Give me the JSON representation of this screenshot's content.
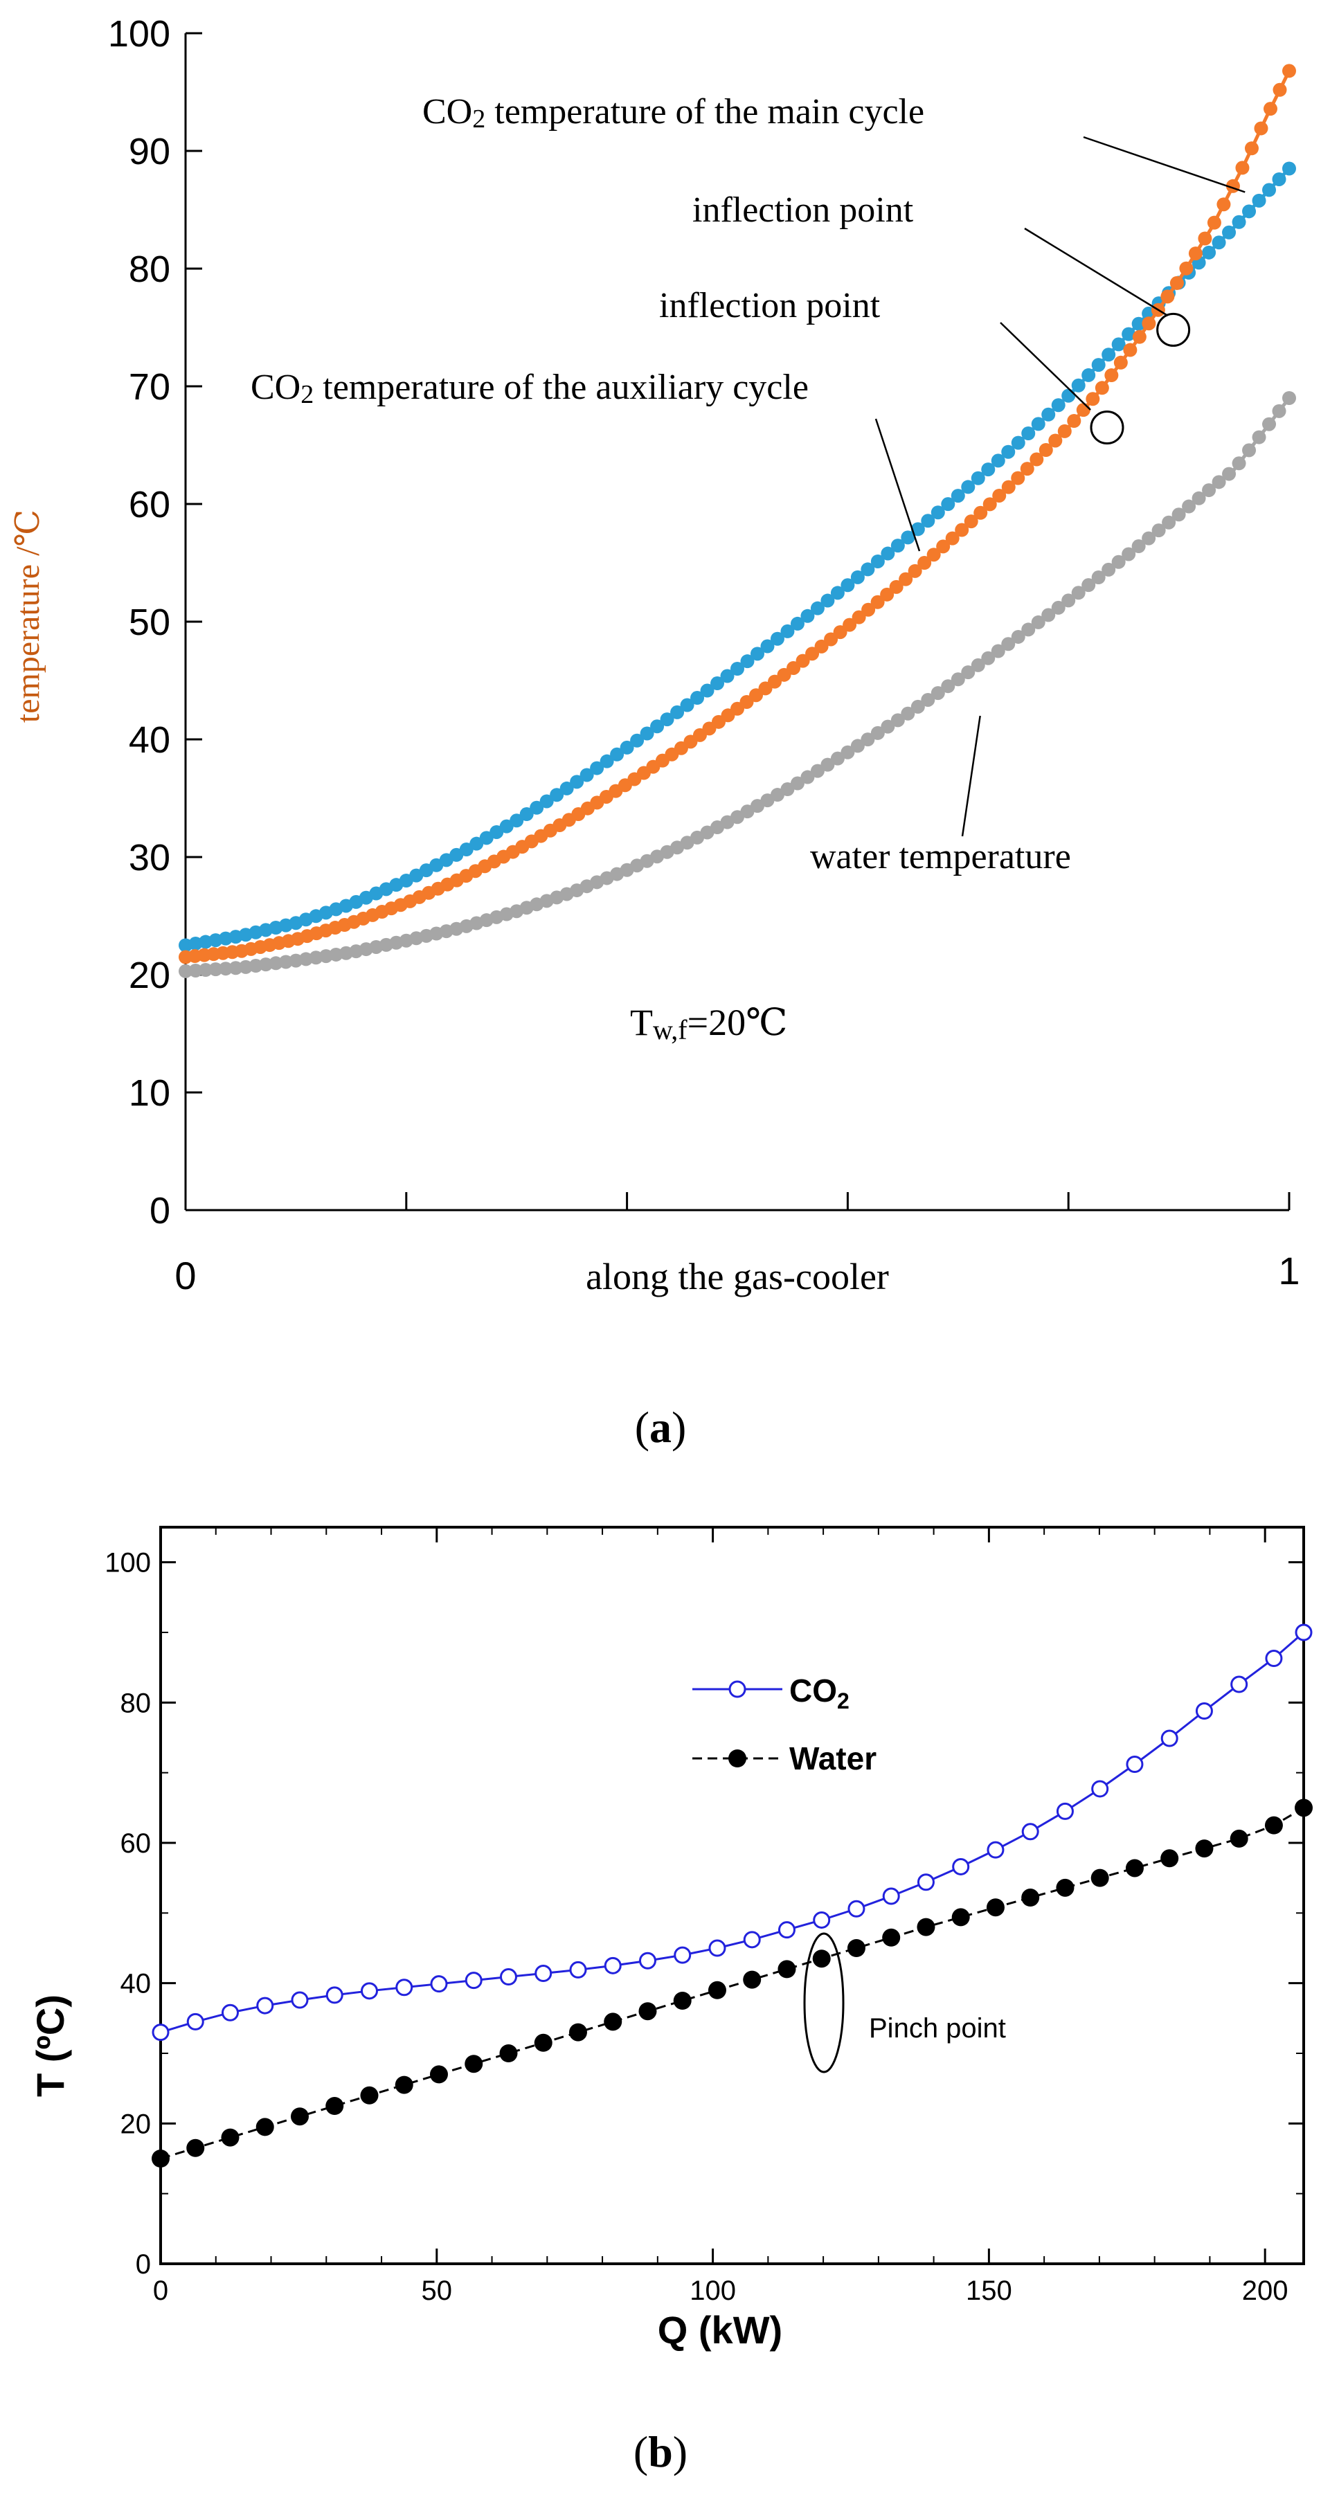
{
  "chart_data": [
    {
      "id": "a",
      "type": "line",
      "panel_label": "a",
      "title": "",
      "xlabel": "along the gas-cooler",
      "ylabel": "temperature /℃",
      "xlim": [
        0,
        1
      ],
      "ylim": [
        0,
        100
      ],
      "xtick_labels": [
        "0",
        "1"
      ],
      "yticks": [
        0,
        10,
        20,
        30,
        40,
        50,
        60,
        70,
        80,
        90,
        100
      ],
      "grid": false,
      "colors": {
        "main": "#2a9fd6",
        "aux": "#f47a2a",
        "water": "#a6a6a6",
        "ylabel": "#c55a11"
      },
      "series": [
        {
          "name": "CO2 temperature of the main cycle",
          "color": "#2a9fd6",
          "x": [
            0,
            0.05,
            0.1,
            0.15,
            0.2,
            0.25,
            0.3,
            0.35,
            0.4,
            0.45,
            0.5,
            0.55,
            0.6,
            0.65,
            0.7,
            0.75,
            0.8,
            0.85,
            0.9,
            0.95,
            1.0
          ],
          "y": [
            22.5,
            23.3,
            24.4,
            26.0,
            28.0,
            30.4,
            33.1,
            36.1,
            39.3,
            42.6,
            46.0,
            49.5,
            53.1,
            56.8,
            60.7,
            64.8,
            69.2,
            74.0,
            78.8,
            83.5,
            88.5
          ]
        },
        {
          "name": "CO2 temperature of the auxiliary cycle",
          "color": "#f47a2a",
          "x": [
            0,
            0.05,
            0.1,
            0.15,
            0.2,
            0.25,
            0.3,
            0.35,
            0.4,
            0.45,
            0.5,
            0.55,
            0.6,
            0.65,
            0.7,
            0.75,
            0.8,
            0.83,
            0.86,
            0.9,
            0.93,
            0.96,
            0.98,
            1.0
          ],
          "y": [
            21.5,
            22.0,
            23.0,
            24.4,
            26.1,
            28.2,
            30.6,
            33.3,
            36.2,
            39.3,
            42.6,
            46.0,
            49.6,
            53.4,
            57.5,
            61.8,
            66.5,
            69.8,
            73.6,
            79.0,
            83.5,
            89.0,
            93.0,
            96.8
          ]
        },
        {
          "name": "water temperature",
          "color": "#a6a6a6",
          "x": [
            0,
            0.05,
            0.1,
            0.15,
            0.2,
            0.25,
            0.3,
            0.35,
            0.4,
            0.45,
            0.5,
            0.55,
            0.6,
            0.65,
            0.7,
            0.75,
            0.8,
            0.85,
            0.9,
            0.95,
            1.0
          ],
          "y": [
            20.3,
            20.6,
            21.2,
            21.9,
            22.9,
            24.0,
            25.4,
            27.0,
            28.9,
            31.0,
            33.4,
            36.0,
            38.9,
            41.9,
            45.1,
            48.4,
            51.8,
            55.4,
            59.1,
            62.9,
            69.0
          ]
        }
      ],
      "annotations": [
        {
          "text_prefix": "CO",
          "text_sub": "2",
          "text_suffix": " temperature of the main cycle"
        },
        {
          "text": "inflection point"
        },
        {
          "text": "inflection point"
        },
        {
          "text_prefix": "CO",
          "text_sub": "2",
          "text_suffix": " temperature of the auxiliary cycle"
        },
        {
          "text": "water temperature"
        },
        {
          "text_prefix": "T",
          "text_sub": "w,f",
          "text_suffix": "=20℃"
        }
      ],
      "inflection_points": [
        {
          "x": 0.835,
          "y": 66.5
        },
        {
          "x": 0.895,
          "y": 74.8
        }
      ]
    },
    {
      "id": "b",
      "type": "line",
      "panel_label": "b",
      "title": "",
      "xlabel": "Q (kW)",
      "ylabel": "T (ºC)",
      "xlim": [
        0,
        207
      ],
      "ylim": [
        0,
        105
      ],
      "xticks": [
        0,
        50,
        100,
        150,
        200
      ],
      "yticks": [
        0,
        20,
        40,
        60,
        80,
        100
      ],
      "grid": false,
      "legend_position": "top-center",
      "series": [
        {
          "name": "CO2",
          "legend_prefix": "CO",
          "legend_sub": "2",
          "color": "#2222dd",
          "marker": "open-circle",
          "line": "solid",
          "x": [
            0,
            6.3,
            12.6,
            18.9,
            25.2,
            31.5,
            37.8,
            44.1,
            50.4,
            56.7,
            63.0,
            69.3,
            75.6,
            81.9,
            88.2,
            94.5,
            100.8,
            107.1,
            113.4,
            119.7,
            126.0,
            132.3,
            138.6,
            144.9,
            151.2,
            157.5,
            163.8,
            170.1,
            176.4,
            182.7,
            189.0,
            195.3,
            201.6,
            207.0
          ],
          "y": [
            33.0,
            34.5,
            35.8,
            36.8,
            37.6,
            38.3,
            38.9,
            39.4,
            39.9,
            40.4,
            40.9,
            41.4,
            41.9,
            42.5,
            43.2,
            44.0,
            45.0,
            46.2,
            47.6,
            49.0,
            50.6,
            52.4,
            54.4,
            56.6,
            59.0,
            61.6,
            64.5,
            67.7,
            71.2,
            74.9,
            78.8,
            82.6,
            86.3,
            90.0
          ]
        },
        {
          "name": "Water",
          "color": "#000000",
          "marker": "filled-circle",
          "line": "dashed",
          "x": [
            0,
            6.3,
            12.6,
            18.9,
            25.2,
            31.5,
            37.8,
            44.1,
            50.4,
            56.7,
            63.0,
            69.3,
            75.6,
            81.9,
            88.2,
            94.5,
            100.8,
            107.1,
            113.4,
            119.7,
            126.0,
            132.3,
            138.6,
            144.9,
            151.2,
            157.5,
            163.8,
            170.1,
            176.4,
            182.7,
            189.0,
            195.3,
            201.6,
            207.0
          ],
          "y": [
            15.0,
            16.5,
            18.0,
            19.5,
            21.0,
            22.5,
            24.0,
            25.5,
            27.0,
            28.5,
            30.0,
            31.5,
            33.0,
            34.5,
            36.0,
            37.5,
            39.0,
            40.5,
            42.0,
            43.5,
            45.0,
            46.5,
            48.0,
            49.4,
            50.8,
            52.2,
            53.6,
            55.0,
            56.4,
            57.8,
            59.2,
            60.6,
            62.5,
            65.0
          ]
        }
      ],
      "annotations": [
        {
          "text": "Pinch point",
          "x": 120,
          "y": 45
        }
      ]
    }
  ]
}
